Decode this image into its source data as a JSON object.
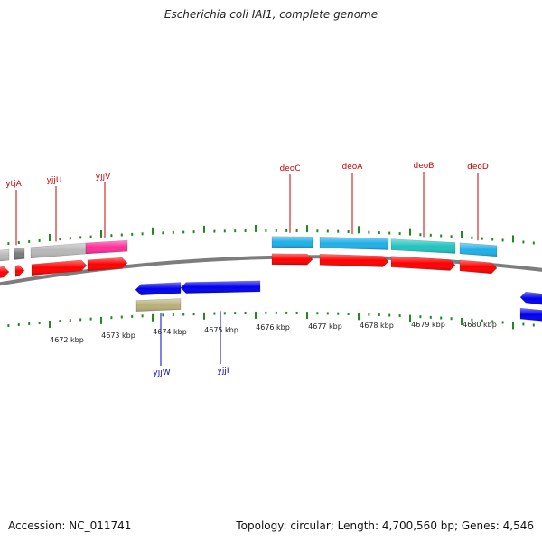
{
  "title": "Escherichia coli IAI1, complete genome",
  "footer": {
    "accession": "Accession: NC_011741",
    "summary": "Topology: circular; Length: 4,700,560 bp; Genes: 4,546"
  },
  "colors": {
    "forward_gene": "#ff0000",
    "reverse_gene": "#0000ee",
    "label_forward": "#cc0000",
    "label_reverse": "#0000cc",
    "cds_blue": "#1fb0e8",
    "cds_teal": "#20c4c0",
    "cds_gray": "#b8b8b8",
    "cds_dark": "#7a7a7a",
    "cds_pink": "#ff2e9a",
    "cds_olive": "#b8b07a",
    "backbone": "#7d7d7d",
    "tick": "#228822"
  },
  "scale": {
    "unit": "kbp",
    "ticks": [
      "4672 kbp",
      "4673 kbp",
      "4674 kbp",
      "4675 kbp",
      "4676 kbp",
      "4677 kbp",
      "4678 kbp",
      "4679 kbp",
      "4680 kbp"
    ]
  },
  "gene_labels": {
    "forward": [
      "ytjA",
      "yjjU",
      "yjjV",
      "deoC",
      "deoA",
      "deoB",
      "deoD"
    ],
    "reverse": [
      "yjjW",
      "yjjI"
    ]
  }
}
